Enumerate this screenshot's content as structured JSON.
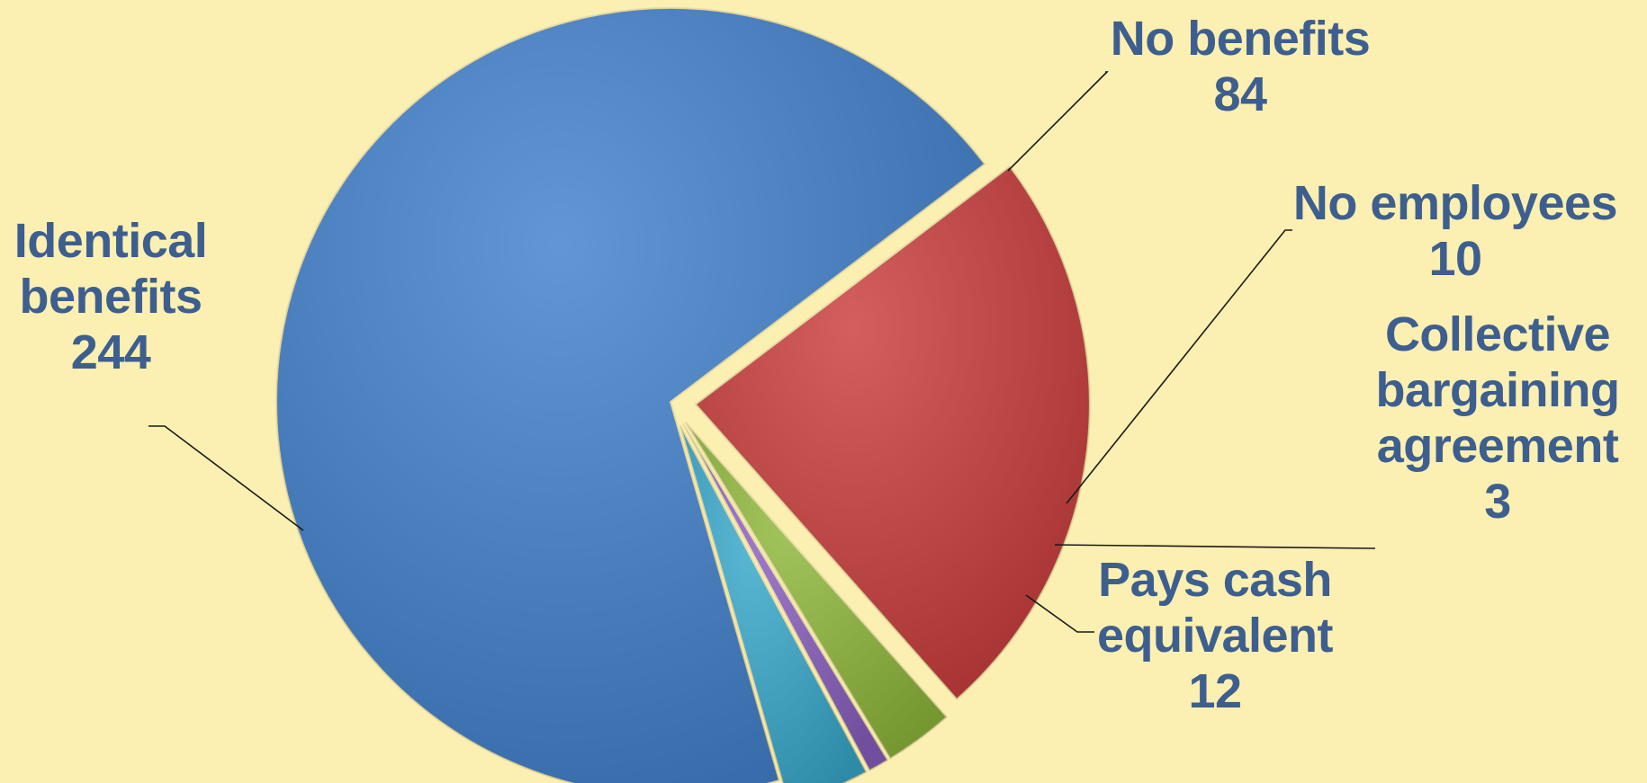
{
  "chart_data": {
    "type": "pie",
    "title": "",
    "slices": [
      {
        "label": "Identical benefits",
        "value": 244,
        "label_lines": [
          "Identical",
          "benefits",
          "244"
        ],
        "color": "#3f7fcb",
        "exploded": false
      },
      {
        "label": "No benefits",
        "value": 84,
        "label_lines": [
          "No benefits",
          "84"
        ],
        "color": "#c93b3b",
        "exploded": true
      },
      {
        "label": "No employees",
        "value": 10,
        "label_lines": [
          "No employees",
          "10"
        ],
        "color": "#8fb83a",
        "exploded": true
      },
      {
        "label": "Collective bargaining agreement",
        "value": 3,
        "label_lines": [
          "Collective",
          "bargaining",
          "agreement",
          "3"
        ],
        "color": "#8a5fc0",
        "exploded": true
      },
      {
        "label": "Pays cash equivalent",
        "value": 12,
        "label_lines": [
          "Pays cash",
          "equivalent",
          "12"
        ],
        "color": "#37a9cc",
        "exploded": true
      }
    ],
    "legend": "none",
    "label_color": "#3d5f8f",
    "background": "#fcefb2"
  }
}
